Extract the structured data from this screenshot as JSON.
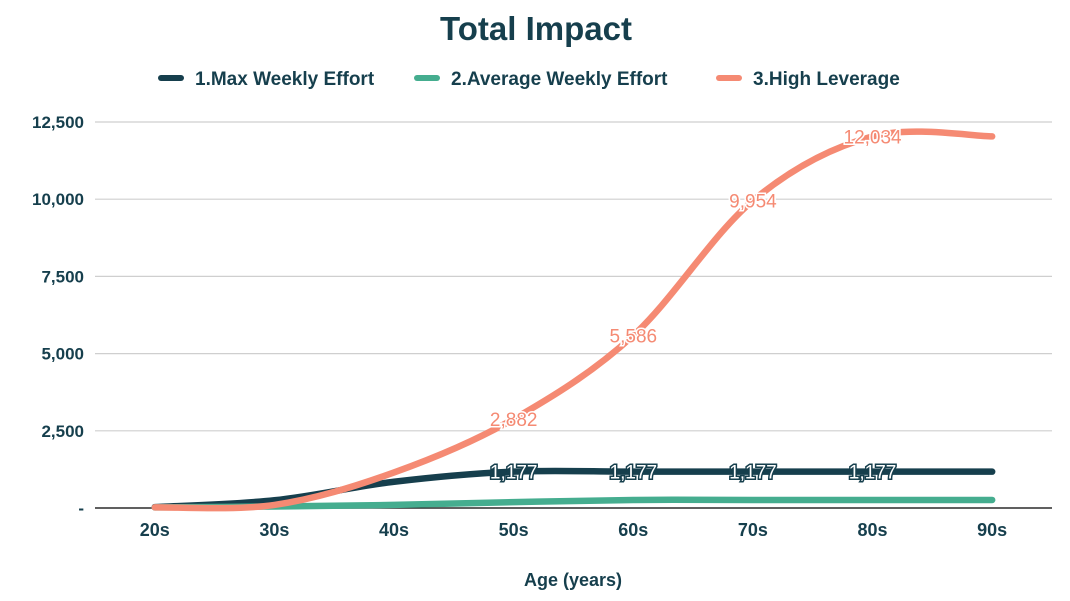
{
  "chart_data": {
    "type": "line",
    "title": "Total Impact",
    "xlabel": "Age (years)",
    "ylabel": "",
    "categories": [
      "20s",
      "30s",
      "40s",
      "50s",
      "60s",
      "70s",
      "80s",
      "90s"
    ],
    "ylim": [
      0,
      12500
    ],
    "yticks": [
      {
        "value": 0,
        "label": "-"
      },
      {
        "value": 2500,
        "label": "2,500"
      },
      {
        "value": 5000,
        "label": "5,000"
      },
      {
        "value": 7500,
        "label": "7,500"
      },
      {
        "value": 10000,
        "label": "10,000"
      },
      {
        "value": 12500,
        "label": "12,500"
      }
    ],
    "grid": true,
    "legend_position": "top",
    "series": [
      {
        "name": "1.Max Weekly Effort",
        "color": "#163f4d",
        "values": [
          30,
          250,
          850,
          1177,
          1177,
          1177,
          1177,
          1177
        ],
        "data_labels": [
          "",
          "",
          "",
          "1,177",
          "1,177",
          "1,177",
          "1,177",
          ""
        ]
      },
      {
        "name": "2.Average Weekly Effort",
        "color": "#45ad8f",
        "values": [
          20,
          50,
          100,
          190,
          260,
          260,
          260,
          260
        ],
        "data_labels": [
          "",
          "",
          "",
          "",
          "",
          "",
          "",
          ""
        ]
      },
      {
        "name": "3.High Leverage",
        "color": "#f58a73",
        "values": [
          20,
          100,
          1150,
          2882,
          5586,
          9954,
          12034,
          12034
        ],
        "data_labels": [
          "",
          "",
          "",
          "2,882",
          "5,586",
          "9,954",
          "12,034",
          ""
        ]
      }
    ],
    "colors": {
      "title": "#163f4d",
      "axis_text": "#163f4d",
      "grid": "#cfcfcf",
      "axis_line": "#2b2b2b"
    }
  }
}
